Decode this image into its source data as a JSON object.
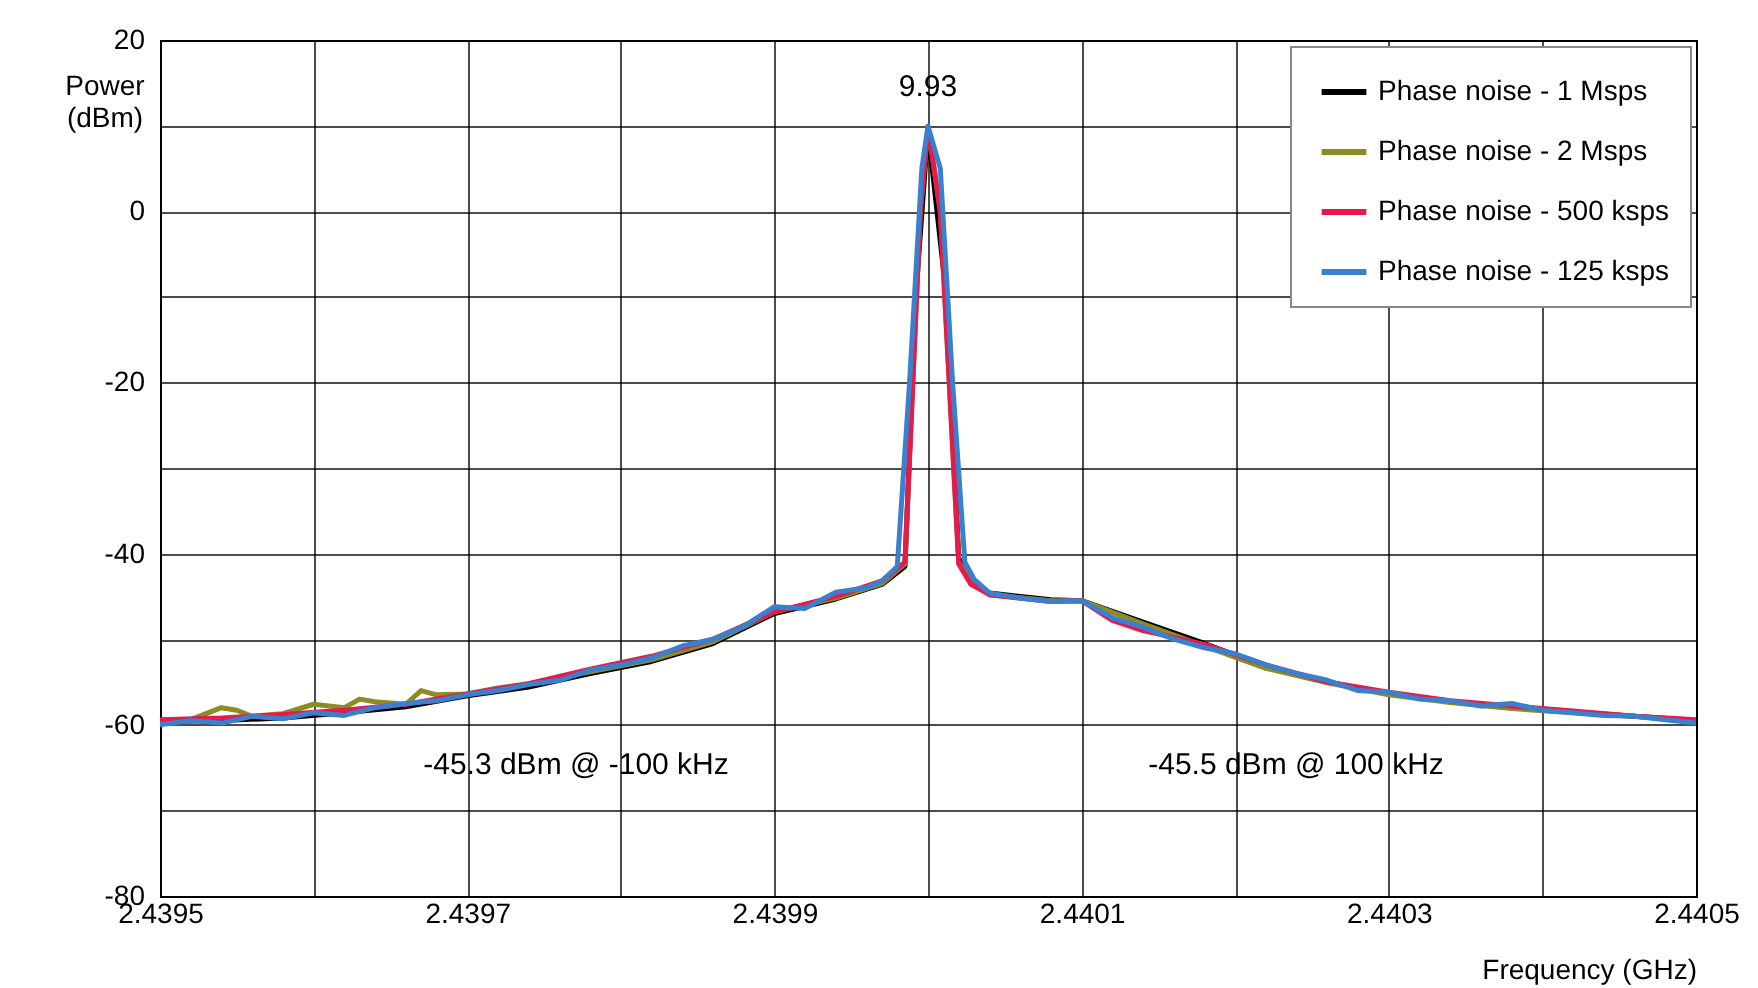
{
  "chart_data": {
    "type": "line",
    "xlabel": "Frequency (GHz)",
    "ylabel": "Power\n(dBm)",
    "xlim": [
      2.4395,
      2.4405
    ],
    "ylim": [
      -80,
      20
    ],
    "xticks": [
      2.4395,
      {
        "value": 2.4396,
        "label": null
      },
      2.4397,
      {
        "value": 2.4398,
        "label": null
      },
      2.4399,
      {
        "value": 2.44,
        "label": null
      },
      2.4401,
      {
        "value": 2.4402,
        "label": null
      },
      2.4403,
      {
        "value": 2.4404,
        "label": null
      },
      2.4405
    ],
    "yticks": [
      -80,
      {
        "value": -70,
        "label": null
      },
      -60,
      {
        "value": -50,
        "label": null
      },
      -40,
      {
        "value": -30,
        "label": null
      },
      -20,
      {
        "value": -10,
        "label": null
      },
      0,
      {
        "value": 10,
        "label": null
      },
      20
    ],
    "grid": true,
    "legend": "top right",
    "line_style": "solid",
    "marker": "none",
    "annotations": [
      {
        "text": "9.93",
        "x": 2.44,
        "y": 9.93
      },
      "-45.3 dBm @ -100 kHz",
      "-45.5 dBm @ 100 kHz"
    ],
    "series": [
      {
        "name": "Phase noise - 1 Msps",
        "color": "#000000",
        "x": [
          2.4395,
          2.43954,
          2.43958,
          2.43962,
          2.43966,
          2.4397,
          2.43974,
          2.43978,
          2.43982,
          2.43986,
          2.4399,
          2.43994,
          2.43997,
          2.439985,
          2.439992,
          2.44,
          2.440012,
          2.44002,
          2.440028,
          2.44004,
          2.44008,
          2.4401,
          2.44014,
          2.44018,
          2.44022,
          2.44026,
          2.4403,
          2.44034,
          2.44038,
          2.44042,
          2.44046,
          2.4405
        ],
        "values": [
          -59.6,
          -59.5,
          -59.2,
          -58.6,
          -57.9,
          -56.6,
          -55.6,
          -54.0,
          -52.6,
          -50.5,
          -47.0,
          -45.3,
          -43.6,
          -41.5,
          -10,
          9.5,
          -10,
          -40.5,
          -43.2,
          -44.6,
          -45.4,
          -45.5,
          -48.0,
          -50.5,
          -53.2,
          -55.0,
          -56.4,
          -57.3,
          -58.0,
          -58.5,
          -59.0,
          -59.5
        ]
      },
      {
        "name": "Phase noise - 2 Msps",
        "color": "#8c8c23",
        "x": [
          2.4395,
          2.43952,
          2.43954,
          2.43955,
          2.43956,
          2.43958,
          2.4396,
          2.43962,
          2.43963,
          2.43964,
          2.43966,
          2.43967,
          2.43968,
          2.4397,
          2.43972,
          2.43974,
          2.43978,
          2.43982,
          2.43986,
          2.4399,
          2.43994,
          2.43997,
          2.439985,
          2.439995,
          2.44,
          2.440008,
          2.44002,
          2.440028,
          2.44004,
          2.44008,
          2.4401,
          2.44014,
          2.44018,
          2.44022,
          2.44026,
          2.4403,
          2.44034,
          2.44038,
          2.44042,
          2.44046,
          2.4405
        ],
        "values": [
          -59.5,
          -59.4,
          -58.0,
          -58.3,
          -59.0,
          -58.7,
          -57.6,
          -58.0,
          -57.0,
          -57.3,
          -57.6,
          -56.0,
          -56.5,
          -56.4,
          -55.7,
          -55.2,
          -53.8,
          -52.4,
          -50.3,
          -46.8,
          -45.2,
          -43.5,
          -41.2,
          0,
          9.9,
          0,
          -41.0,
          -43.2,
          -44.8,
          -45.5,
          -45.5,
          -48.2,
          -50.8,
          -53.4,
          -55.1,
          -56.5,
          -57.4,
          -58.1,
          -58.6,
          -59.0,
          -59.6
        ]
      },
      {
        "name": "Phase noise - 500 ksps",
        "color": "#e8194b",
        "x": [
          2.4395,
          2.43954,
          2.43958,
          2.43962,
          2.43966,
          2.4397,
          2.43974,
          2.43978,
          2.43982,
          2.43986,
          2.4399,
          2.43994,
          2.43997,
          2.439985,
          2.439995,
          2.44,
          2.440008,
          2.44002,
          2.440028,
          2.44004,
          2.44008,
          2.4401,
          2.44012,
          2.44014,
          2.44018,
          2.44022,
          2.44026,
          2.4403,
          2.44034,
          2.44038,
          2.44042,
          2.44046,
          2.4405
        ],
        "values": [
          -59.4,
          -59.2,
          -58.8,
          -58.3,
          -57.6,
          -56.4,
          -55.2,
          -53.5,
          -52.0,
          -50.0,
          -46.8,
          -45.0,
          -43.2,
          -41.0,
          0,
          9.9,
          0,
          -41.2,
          -43.6,
          -44.8,
          -45.6,
          -45.5,
          -47.8,
          -49.0,
          -50.6,
          -53.0,
          -55.0,
          -56.2,
          -57.2,
          -57.8,
          -58.4,
          -59.0,
          -59.4
        ]
      },
      {
        "name": "Phase noise - 125 ksps",
        "color": "#3b80cc",
        "x": [
          2.4395,
          2.43952,
          2.43954,
          2.43956,
          2.43958,
          2.4396,
          2.43962,
          2.43964,
          2.43966,
          2.43968,
          2.4397,
          2.43972,
          2.43974,
          2.43976,
          2.43978,
          2.4398,
          2.43982,
          2.43984,
          2.43986,
          2.43988,
          2.4399,
          2.43992,
          2.43994,
          2.43996,
          2.43997,
          2.43998,
          2.439988,
          2.439996,
          2.44,
          2.440008,
          2.440016,
          2.440024,
          2.44003,
          2.44004,
          2.44006,
          2.44008,
          2.4401,
          2.44012,
          2.44014,
          2.44016,
          2.44018,
          2.4402,
          2.44022,
          2.44024,
          2.44026,
          2.44028,
          2.4403,
          2.44032,
          2.44034,
          2.44036,
          2.44038,
          2.4404,
          2.44042,
          2.44044,
          2.44046,
          2.44048,
          2.4405
        ],
        "values": [
          -60.0,
          -59.5,
          -59.8,
          -59.0,
          -59.3,
          -58.6,
          -58.9,
          -58.0,
          -57.5,
          -57.2,
          -56.5,
          -56.0,
          -55.3,
          -54.8,
          -53.6,
          -53.0,
          -52.2,
          -50.8,
          -50.0,
          -48.5,
          -46.2,
          -46.4,
          -44.5,
          -44.0,
          -43.2,
          -41.5,
          -20,
          5,
          9.93,
          5,
          -20,
          -41,
          -43,
          -44.6,
          -45.2,
          -45.6,
          -45.5,
          -47.5,
          -48.6,
          -50.0,
          -51.0,
          -51.7,
          -53.0,
          -54.0,
          -54.8,
          -56.0,
          -56.2,
          -57.0,
          -57.2,
          -57.8,
          -57.5,
          -58.3,
          -58.6,
          -58.9,
          -59.0,
          -59.4,
          -59.8
        ]
      }
    ]
  }
}
